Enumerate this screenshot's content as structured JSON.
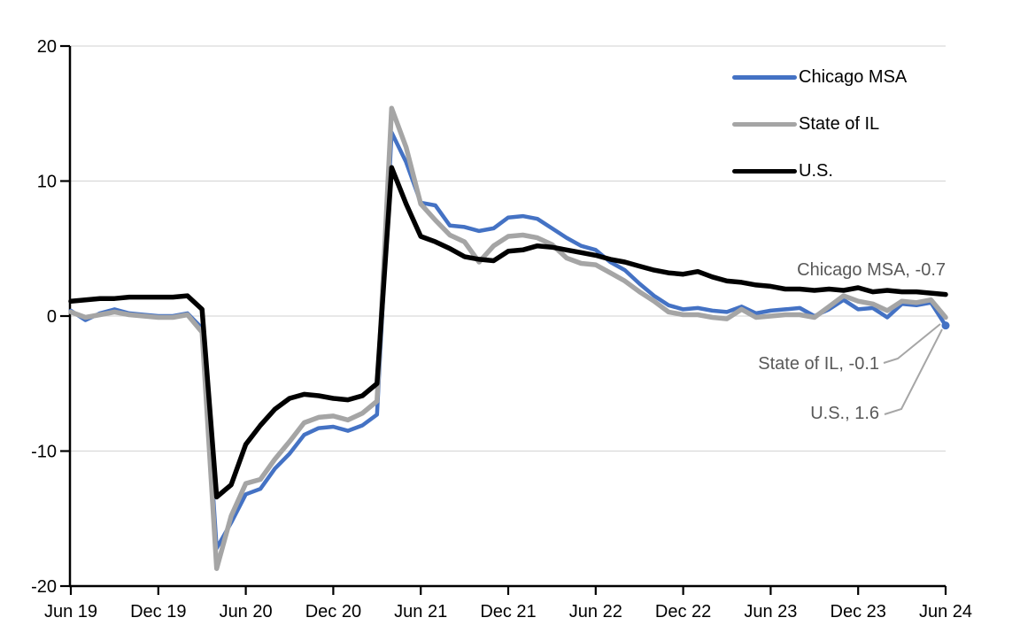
{
  "chart_data": {
    "type": "line",
    "x_range": {
      "start": "Jun 2019",
      "end": "Jun 2024",
      "frequency": "monthly",
      "n_points": 61
    },
    "x_tick_labels": [
      "Jun 19",
      "Dec 19",
      "Jun 20",
      "Dec 20",
      "Jun 21",
      "Dec 21",
      "Jun 22",
      "Dec 22",
      "Jun 23",
      "Dec 23",
      "Jun 24"
    ],
    "y_ticks": [
      20,
      10,
      0,
      -10,
      -20
    ],
    "ylim": [
      -20,
      20
    ],
    "gridlines": [
      20,
      10,
      0,
      -10
    ],
    "grid_color": "#D9D9D9",
    "axis_color": "#000000",
    "legend_position": "top-right",
    "series": [
      {
        "name": "Chicago MSA",
        "color": "#4472C4",
        "stroke_width": 4.5,
        "end_value": -0.7,
        "values": [
          0.4,
          -0.3,
          0.2,
          0.5,
          0.2,
          0.1,
          0.0,
          0.0,
          0.2,
          -0.9,
          -17.2,
          -15.3,
          -13.2,
          -12.8,
          -11.3,
          -10.2,
          -8.8,
          -8.3,
          -8.2,
          -8.5,
          -8.1,
          -7.3,
          13.6,
          11.4,
          8.4,
          8.2,
          6.7,
          6.6,
          6.3,
          6.5,
          7.3,
          7.4,
          7.2,
          6.5,
          5.8,
          5.2,
          4.9,
          4.0,
          3.4,
          2.4,
          1.5,
          0.8,
          0.5,
          0.6,
          0.4,
          0.3,
          0.7,
          0.2,
          0.4,
          0.5,
          0.6,
          0.0,
          0.5,
          1.2,
          0.5,
          0.6,
          -0.1,
          0.9,
          0.8,
          1.0,
          -0.7
        ]
      },
      {
        "name": "State of IL",
        "color": "#A5A5A5",
        "stroke_width": 5.5,
        "end_value": -0.1,
        "values": [
          0.3,
          -0.1,
          0.1,
          0.3,
          0.1,
          0.0,
          -0.1,
          -0.1,
          0.1,
          -1.2,
          -18.7,
          -14.8,
          -12.4,
          -12.1,
          -10.6,
          -9.3,
          -7.9,
          -7.5,
          -7.4,
          -7.7,
          -7.2,
          -6.3,
          15.4,
          12.5,
          8.3,
          7.1,
          6.0,
          5.5,
          4.0,
          5.2,
          5.9,
          6.0,
          5.8,
          5.3,
          4.3,
          3.9,
          3.8,
          3.2,
          2.6,
          1.8,
          1.1,
          0.3,
          0.1,
          0.1,
          -0.1,
          -0.2,
          0.5,
          -0.1,
          0.0,
          0.1,
          0.1,
          -0.1,
          0.7,
          1.5,
          1.1,
          0.9,
          0.4,
          1.1,
          1.0,
          1.2,
          -0.1
        ]
      },
      {
        "name": "U.S.",
        "color": "#000000",
        "stroke_width": 5.5,
        "end_value": 1.6,
        "values": [
          1.1,
          1.2,
          1.3,
          1.3,
          1.4,
          1.4,
          1.4,
          1.4,
          1.5,
          0.5,
          -13.4,
          -12.5,
          -9.5,
          -8.1,
          -6.9,
          -6.1,
          -5.8,
          -5.9,
          -6.1,
          -6.2,
          -5.9,
          -5.0,
          11.0,
          8.3,
          5.9,
          5.5,
          5.0,
          4.4,
          4.2,
          4.1,
          4.8,
          4.9,
          5.2,
          5.1,
          4.9,
          4.7,
          4.5,
          4.2,
          4.0,
          3.7,
          3.4,
          3.2,
          3.1,
          3.3,
          2.9,
          2.6,
          2.5,
          2.3,
          2.2,
          2.0,
          2.0,
          1.9,
          2.0,
          1.9,
          2.1,
          1.8,
          1.9,
          1.8,
          1.8,
          1.7,
          1.6
        ]
      }
    ],
    "annotations": [
      {
        "label": "U.S., 1.6"
      },
      {
        "label": "State of IL, -0.1"
      },
      {
        "label": "Chicago MSA, -0.7"
      }
    ],
    "annotation_color": "#595959",
    "leader_line_color": "#A6A6A6"
  },
  "legend": {
    "items": [
      "Chicago MSA",
      "State of IL",
      "U.S."
    ]
  }
}
